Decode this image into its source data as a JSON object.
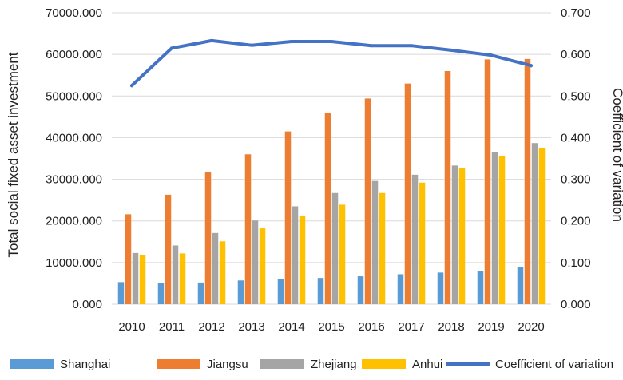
{
  "chart_data": {
    "type": "bar",
    "title": "",
    "categories": [
      "2010",
      "2011",
      "2012",
      "2013",
      "2014",
      "2015",
      "2016",
      "2017",
      "2018",
      "2019",
      "2020"
    ],
    "series": [
      {
        "name": "Shanghai",
        "type": "bar",
        "axis": "left",
        "color": "#5B9BD5",
        "values": [
          5300,
          5000,
          5200,
          5700,
          6000,
          6300,
          6700,
          7200,
          7600,
          8000,
          8900
        ]
      },
      {
        "name": "Jiangsu",
        "type": "bar",
        "axis": "left",
        "color": "#ED7D31",
        "values": [
          21600,
          26300,
          31700,
          36000,
          41500,
          46000,
          49400,
          53000,
          56000,
          58800,
          58900
        ]
      },
      {
        "name": "Zhejiang",
        "type": "bar",
        "axis": "left",
        "color": "#A5A5A5",
        "values": [
          12300,
          14100,
          17100,
          20100,
          23500,
          26700,
          29600,
          31100,
          33300,
          36600,
          38700
        ]
      },
      {
        "name": "Anhui",
        "type": "bar",
        "axis": "left",
        "color": "#FFC000",
        "values": [
          11900,
          12200,
          15100,
          18200,
          21300,
          23900,
          26700,
          29200,
          32700,
          35600,
          37400
        ]
      },
      {
        "name": "Coefficient of variation",
        "type": "line",
        "axis": "right",
        "color": "#4472C4",
        "values": [
          0.525,
          0.615,
          0.633,
          0.622,
          0.631,
          0.631,
          0.621,
          0.621,
          0.61,
          0.598,
          0.573
        ]
      }
    ],
    "ylabel": "Total social fixed asset investment",
    "y2label": "Coefficient of variation",
    "ylim": [
      0,
      70000
    ],
    "y2lim": [
      0,
      0.7
    ],
    "yticks": [
      "0.000",
      "10000.000",
      "20000.000",
      "30000.000",
      "40000.000",
      "50000.000",
      "60000.000",
      "70000.000"
    ],
    "y2ticks": [
      "0.000",
      "0.100",
      "0.200",
      "0.300",
      "0.400",
      "0.500",
      "0.600",
      "0.700"
    ],
    "grid": true,
    "legend": "bottom"
  }
}
